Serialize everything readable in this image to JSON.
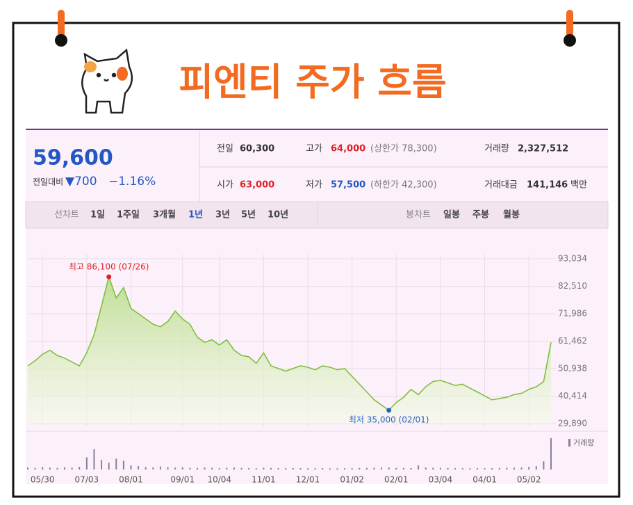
{
  "header": {
    "title": "피엔티 주가 흐름"
  },
  "panel": {
    "price": "59,600",
    "change_label": "전일대비",
    "change": "▼700",
    "change_pct": "−1.16%",
    "rows": [
      [
        {
          "label": "전일",
          "value": "60,300"
        },
        {
          "label": "고가",
          "value": "64,000",
          "note": "(상한가 78,300)"
        },
        {
          "label": "거래량",
          "value": "2,327,512"
        }
      ],
      [
        {
          "label": "시가",
          "value": "63,000"
        },
        {
          "label": "저가",
          "value": "57,500",
          "note": "(하한가 42,300)"
        },
        {
          "label": "거래대금",
          "value": "141,146",
          "unit": "백만"
        }
      ]
    ],
    "line_tabs": {
      "label": "선차트",
      "items": [
        "1일",
        "1주일",
        "3개월",
        "1년",
        "3년",
        "5년",
        "10년"
      ],
      "active": "1년"
    },
    "candle_tabs": {
      "label": "봉차트",
      "items": [
        "일봉",
        "주봉",
        "월봉"
      ]
    }
  },
  "chart_data": [
    {
      "type": "line",
      "color": "#7fbf3f",
      "grid": true,
      "categories": [
        null,
        null,
        "05/30",
        null,
        null,
        null,
        null,
        null,
        "07/03",
        null,
        null,
        null,
        null,
        null,
        "08/01",
        null,
        null,
        null,
        null,
        null,
        null,
        "09/01",
        null,
        null,
        null,
        null,
        "10/04",
        null,
        null,
        null,
        null,
        null,
        "11/01",
        null,
        null,
        null,
        null,
        null,
        "12/01",
        null,
        null,
        null,
        null,
        null,
        "01/02",
        null,
        null,
        null,
        null,
        null,
        "02/01",
        null,
        null,
        null,
        null,
        null,
        "03/04",
        null,
        null,
        null,
        null,
        null,
        "04/01",
        null,
        null,
        null,
        null,
        null,
        "05/02",
        null,
        null,
        null
      ],
      "values": [
        52000,
        54000,
        56500,
        58000,
        56000,
        55000,
        53500,
        52000,
        57000,
        64000,
        75000,
        86100,
        78000,
        82000,
        74000,
        72000,
        70000,
        68000,
        67000,
        69000,
        73000,
        70000,
        68000,
        63000,
        61000,
        62000,
        60000,
        62000,
        58000,
        56000,
        55500,
        53000,
        57000,
        52000,
        51000,
        50000,
        51000,
        52000,
        51500,
        50500,
        52000,
        51500,
        50500,
        51000,
        48000,
        45000,
        42000,
        39000,
        37000,
        35000,
        38000,
        40000,
        43000,
        41000,
        44000,
        46000,
        46500,
        45500,
        44500,
        45000,
        43500,
        42000,
        40500,
        39000,
        39500,
        40000,
        41000,
        41500,
        43000,
        44000,
        46000,
        61000
      ],
      "ylim": [
        29890,
        93034
      ],
      "yticks": [
        {
          "value": 29890,
          "label": "29,890"
        },
        {
          "value": 40414,
          "label": "40,414"
        },
        {
          "value": 50938,
          "label": "50,938"
        },
        {
          "value": 61462,
          "label": "61,462"
        },
        {
          "value": 71986,
          "label": "71,986"
        },
        {
          "value": 82510,
          "label": "82,510"
        },
        {
          "value": 93034,
          "label": "93,034"
        }
      ],
      "annotations": [
        {
          "text": "최고 86,100 (07/26)",
          "value": 86100,
          "color": "#e0202a"
        },
        {
          "text": "최저 35,000 (02/01)",
          "value": 35000,
          "color": "#2a5fc8"
        }
      ]
    },
    {
      "type": "bar",
      "name": "거래량",
      "color": "#8a7f9e",
      "values": [
        150000,
        120000,
        180000,
        140000,
        110000,
        160000,
        130000,
        200000,
        900000,
        1500000,
        700000,
        500000,
        800000,
        650000,
        300000,
        250000,
        180000,
        150000,
        220000,
        170000,
        140000,
        160000,
        120000,
        110000,
        150000,
        130000,
        100000,
        120000,
        140000,
        110000,
        100000,
        90000,
        130000,
        110000,
        100000,
        95000,
        105000,
        100000,
        90000,
        95000,
        100000,
        85000,
        90000,
        95000,
        100000,
        110000,
        120000,
        130000,
        140000,
        150000,
        120000,
        110000,
        100000,
        300000,
        150000,
        130000,
        120000,
        110000,
        100000,
        95000,
        90000,
        100000,
        95000,
        100000,
        110000,
        120000,
        130000,
        150000,
        200000,
        250000,
        600000,
        2300000
      ]
    }
  ]
}
